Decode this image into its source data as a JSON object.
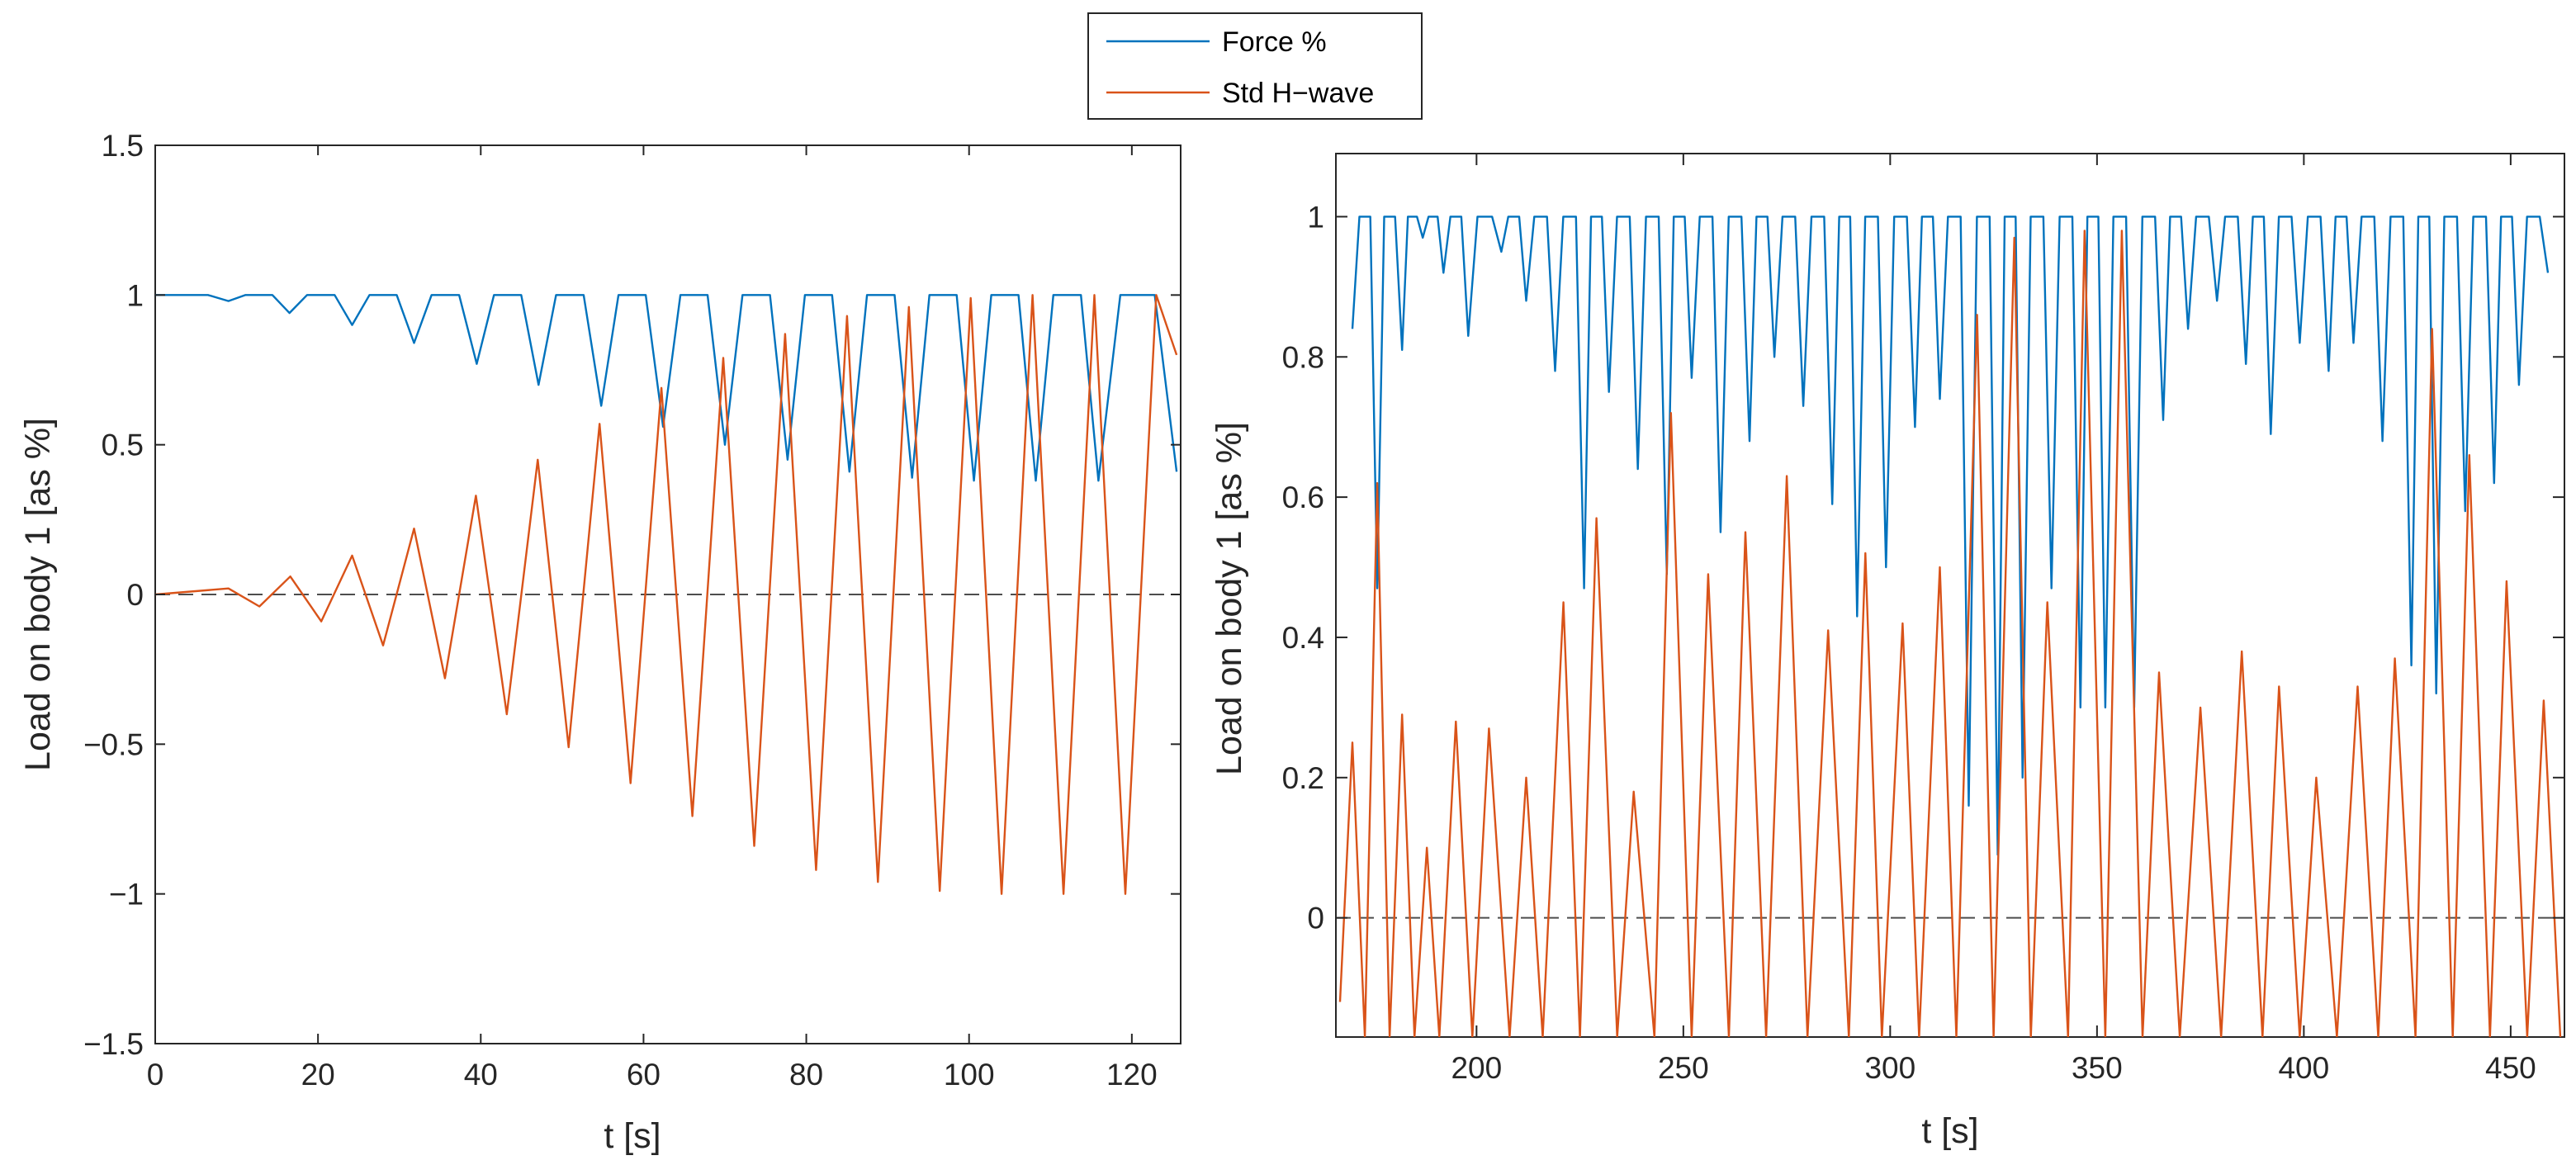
{
  "legend": {
    "entries": [
      {
        "label": "Force %",
        "color": "#0072BD"
      },
      {
        "label": "Std H−wave",
        "color": "#D95319"
      }
    ]
  },
  "chart_data": [
    {
      "type": "line",
      "xlabel": "t [s]",
      "ylabel": "Load on body 1 [as %]",
      "xlim": [
        0,
        126
      ],
      "ylim": [
        -1.5,
        1.5
      ],
      "xticks": [
        0,
        20,
        40,
        60,
        80,
        100,
        120
      ],
      "xtick_labels": [
        "0",
        "20",
        "40",
        "60",
        "80",
        "100",
        "120"
      ],
      "yticks": [
        -1.5,
        -1,
        -0.5,
        0,
        0.5,
        1,
        1.5
      ],
      "ytick_labels": [
        "−1.5",
        "−1",
        "−0.5",
        "0",
        "0.5",
        "1",
        "1.5"
      ],
      "reference_line": {
        "y": 0,
        "style": "dashed"
      },
      "series": [
        {
          "name": "Force %",
          "color": "#0072BD",
          "x": [
            0,
            9.0,
            16.5,
            24.2,
            31.8,
            39.5,
            47.1,
            54.8,
            62.4,
            70.0,
            77.7,
            85.3,
            93.0,
            100.6,
            108.2,
            115.9,
            125.5
          ],
          "y": [
            1.0,
            0.98,
            0.94,
            0.9,
            0.84,
            0.77,
            0.7,
            0.63,
            0.56,
            0.5,
            0.45,
            0.41,
            0.39,
            0.38,
            0.38,
            0.38,
            0.41
          ]
        },
        {
          "name": "Std H−wave",
          "color": "#D95319",
          "x": [
            0,
            9.0,
            12.8,
            16.6,
            20.4,
            24.2,
            28.0,
            31.8,
            35.6,
            39.4,
            43.2,
            47.0,
            50.8,
            54.6,
            58.4,
            62.2,
            66.0,
            69.8,
            73.6,
            77.4,
            81.2,
            85.0,
            88.8,
            92.6,
            96.4,
            100.2,
            104.0,
            107.8,
            111.6,
            115.4,
            119.2,
            123.0,
            125.5
          ],
          "y": [
            0,
            0.02,
            -0.04,
            0.06,
            -0.09,
            0.13,
            -0.17,
            0.22,
            -0.28,
            0.33,
            -0.4,
            0.45,
            -0.51,
            0.57,
            -0.63,
            0.69,
            -0.74,
            0.79,
            -0.84,
            0.87,
            -0.92,
            0.93,
            -0.96,
            0.96,
            -0.99,
            0.99,
            -1.0,
            1.0,
            -1.0,
            1.0,
            -1.0,
            1.0,
            0.8
          ]
        }
      ]
    },
    {
      "type": "line",
      "xlabel": "t [s]",
      "ylabel": "Load on body 1 [as %]",
      "xlim": [
        166,
        463
      ],
      "ylim": [
        -0.17,
        1.09
      ],
      "xticks": [
        200,
        250,
        300,
        350,
        400,
        450
      ],
      "xtick_labels": [
        "200",
        "250",
        "300",
        "350",
        "400",
        "450"
      ],
      "yticks": [
        0,
        0.2,
        0.4,
        0.6,
        0.8,
        1
      ],
      "ytick_labels": [
        "0",
        "0.2",
        "0.4",
        "0.6",
        "0.8",
        "1"
      ],
      "reference_line": {
        "y": 0,
        "style": "dashed"
      },
      "series": [
        {
          "name": "Force %",
          "color": "#0072BD",
          "x": [
            170,
            176,
            182,
            187,
            192,
            198,
            206,
            212,
            219,
            226,
            232,
            239,
            246,
            252,
            259,
            266,
            272,
            279,
            286,
            292,
            299,
            306,
            312,
            319,
            326,
            332,
            339,
            346,
            352,
            359,
            366,
            372,
            379,
            386,
            392,
            399,
            406,
            412,
            419,
            426,
            432,
            439,
            446,
            452,
            459
          ],
          "y": [
            0.84,
            0.47,
            0.81,
            0.97,
            0.92,
            0.83,
            0.95,
            0.88,
            0.78,
            0.47,
            0.75,
            0.64,
            0.49,
            0.77,
            0.55,
            0.68,
            0.8,
            0.73,
            0.59,
            0.43,
            0.5,
            0.7,
            0.74,
            0.16,
            0.09,
            0.2,
            0.47,
            0.3,
            0.3,
            0.3,
            0.71,
            0.84,
            0.88,
            0.79,
            0.69,
            0.82,
            0.78,
            0.82,
            0.68,
            0.36,
            0.32,
            0.58,
            0.62,
            0.76,
            0.92
          ]
        },
        {
          "name": "Std H−wave",
          "color": "#D95319",
          "x": [
            167,
            170,
            173,
            176,
            179,
            182,
            185,
            188,
            191,
            195,
            199,
            203,
            208,
            212,
            216,
            221,
            225,
            229,
            234,
            238,
            243,
            247,
            252,
            256,
            261,
            265,
            270,
            275,
            280,
            285,
            290,
            294,
            298,
            303,
            307,
            312,
            316,
            321,
            325,
            330,
            334,
            338,
            343,
            347,
            352,
            356,
            361,
            365,
            370,
            375,
            380,
            385,
            390,
            394,
            399,
            403,
            408,
            413,
            418,
            422,
            427,
            431,
            436,
            440,
            445,
            449,
            454,
            458,
            462
          ],
          "y": [
            -0.12,
            0.25,
            -0.17,
            0.62,
            -0.17,
            0.29,
            -0.17,
            0.1,
            -0.17,
            0.28,
            -0.17,
            0.27,
            -0.17,
            0.2,
            -0.17,
            0.45,
            -0.17,
            0.57,
            -0.17,
            0.18,
            -0.17,
            0.72,
            -0.17,
            0.49,
            -0.17,
            0.55,
            -0.17,
            0.63,
            -0.17,
            0.41,
            -0.17,
            0.52,
            -0.17,
            0.42,
            -0.17,
            0.5,
            -0.17,
            0.86,
            -0.17,
            0.97,
            -0.17,
            0.45,
            -0.17,
            0.98,
            -0.17,
            0.98,
            -0.17,
            0.35,
            -0.17,
            0.3,
            -0.17,
            0.38,
            -0.17,
            0.33,
            -0.17,
            0.2,
            -0.17,
            0.33,
            -0.17,
            0.37,
            -0.17,
            0.84,
            -0.17,
            0.66,
            -0.17,
            0.48,
            -0.17,
            0.31,
            -0.17
          ]
        }
      ]
    }
  ]
}
